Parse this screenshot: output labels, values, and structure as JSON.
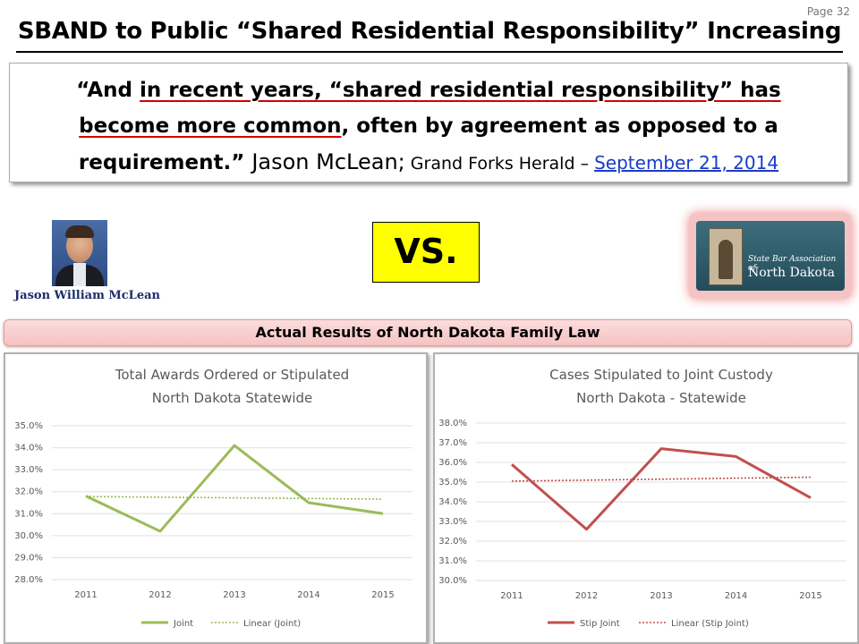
{
  "page": {
    "number": "Page 32",
    "title": "SBAND to Public “Shared Residential Responsibility” Increasing"
  },
  "quote": {
    "part1": "“And ",
    "part2_ul": "in recent years, “shared residential responsibility” has",
    "part3_ul": "become more common",
    "part4": ", often by agreement as opposed to a requirement.” ",
    "author": "Jason McLean;",
    "publication": " Grand Forks Herald – ",
    "date_link": "September  21, 2014"
  },
  "left_person": {
    "caption": "Jason William McLean"
  },
  "vs_label": "VS.",
  "logo": {
    "line1": "State Bar Association of",
    "line2": "North Dakota"
  },
  "section_header": "Actual Results of North Dakota Family Law",
  "colors": {
    "green": "#9bbb59",
    "red": "#c0504d",
    "section_bg": "#f6c3c3",
    "vs_bg": "#ffff00"
  },
  "chart_data": [
    {
      "type": "line",
      "title": "Total Awards Ordered or Stipulated",
      "subtitle": "North Dakota Statewide",
      "x": [
        "2011",
        "2012",
        "2013",
        "2014",
        "2015"
      ],
      "y_ticks": [
        "35.0%",
        "34.0%",
        "33.0%",
        "32.0%",
        "31.0%",
        "30.0%",
        "29.0%",
        "28.0%"
      ],
      "ylim": [
        28,
        35
      ],
      "series": [
        {
          "name": "Joint",
          "values": [
            31.8,
            30.2,
            34.1,
            31.5,
            31.0
          ],
          "style": "solid",
          "color": "#9bbb59"
        },
        {
          "name": "Linear (Joint)",
          "values": [
            31.78,
            31.75,
            31.72,
            31.69,
            31.66
          ],
          "style": "dotted",
          "color": "#9bbb59"
        }
      ],
      "legend": "bottom",
      "grid": true
    },
    {
      "type": "line",
      "title": "Cases Stipulated to Joint Custody",
      "subtitle": "North Dakota - Statewide",
      "x": [
        "2011",
        "2012",
        "2013",
        "2014",
        "2015"
      ],
      "y_ticks": [
        "38.0%",
        "37.0%",
        "36.0%",
        "35.0%",
        "34.0%",
        "33.0%",
        "32.0%",
        "31.0%",
        "30.0%"
      ],
      "ylim": [
        30,
        38
      ],
      "series": [
        {
          "name": "Stip Joint",
          "values": [
            35.9,
            32.6,
            36.7,
            36.3,
            34.2
          ],
          "style": "solid",
          "color": "#c0504d"
        },
        {
          "name": "Linear (Stip Joint)",
          "values": [
            35.05,
            35.1,
            35.15,
            35.2,
            35.25
          ],
          "style": "dotted",
          "color": "#c0504d"
        }
      ],
      "legend": "bottom",
      "grid": true
    }
  ]
}
